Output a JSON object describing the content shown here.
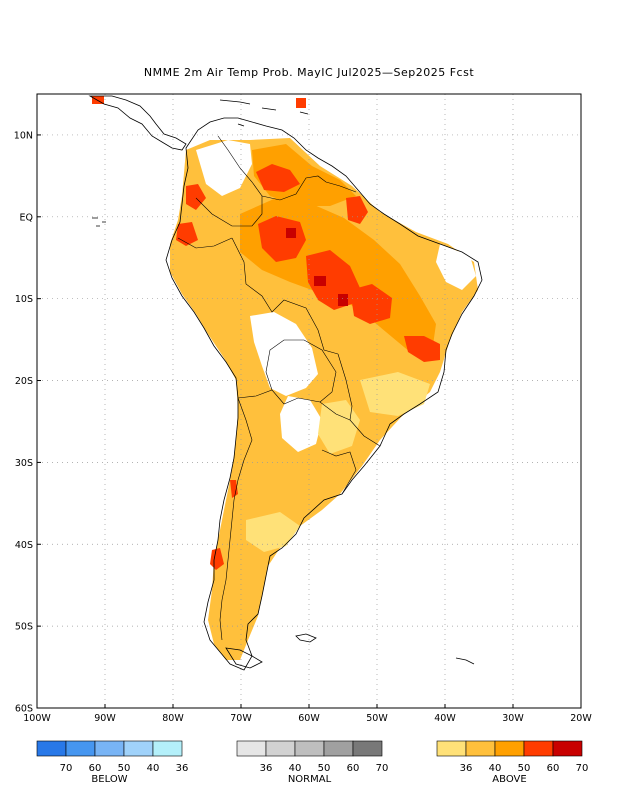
{
  "title": "NMME 2m Air Temp Prob. MayIC   Jul2025—Sep2025 Fcst",
  "map": {
    "lon_range": [
      -100,
      -20
    ],
    "lat_range": [
      -60,
      15
    ],
    "lat_labels": [
      "10N",
      "EQ",
      "10S",
      "20S",
      "30S",
      "40S",
      "50S",
      "60S"
    ],
    "lon_labels": [
      "100W",
      "90W",
      "80W",
      "70W",
      "60W",
      "50W",
      "40W",
      "30W",
      "20W"
    ]
  },
  "legend": {
    "below": {
      "label": "BELOW",
      "ticks": [
        "70",
        "60",
        "50",
        "40",
        "36"
      ],
      "colors": [
        "#2878e8",
        "#4696f0",
        "#78b4f5",
        "#a0d2fa",
        "#b4f0fa"
      ]
    },
    "normal": {
      "label": "NORMAL",
      "ticks": [
        "36",
        "40",
        "50",
        "60",
        "70"
      ],
      "colors": [
        "#e6e6e6",
        "#d2d2d2",
        "#bebebe",
        "#a0a0a0",
        "#787878"
      ]
    },
    "above": {
      "label": "ABOVE",
      "ticks": [
        "36",
        "40",
        "50",
        "60",
        "70"
      ],
      "colors": [
        "#ffe178",
        "#ffc03c",
        "#ffa000",
        "#ff3c00",
        "#c80000"
      ]
    }
  }
}
